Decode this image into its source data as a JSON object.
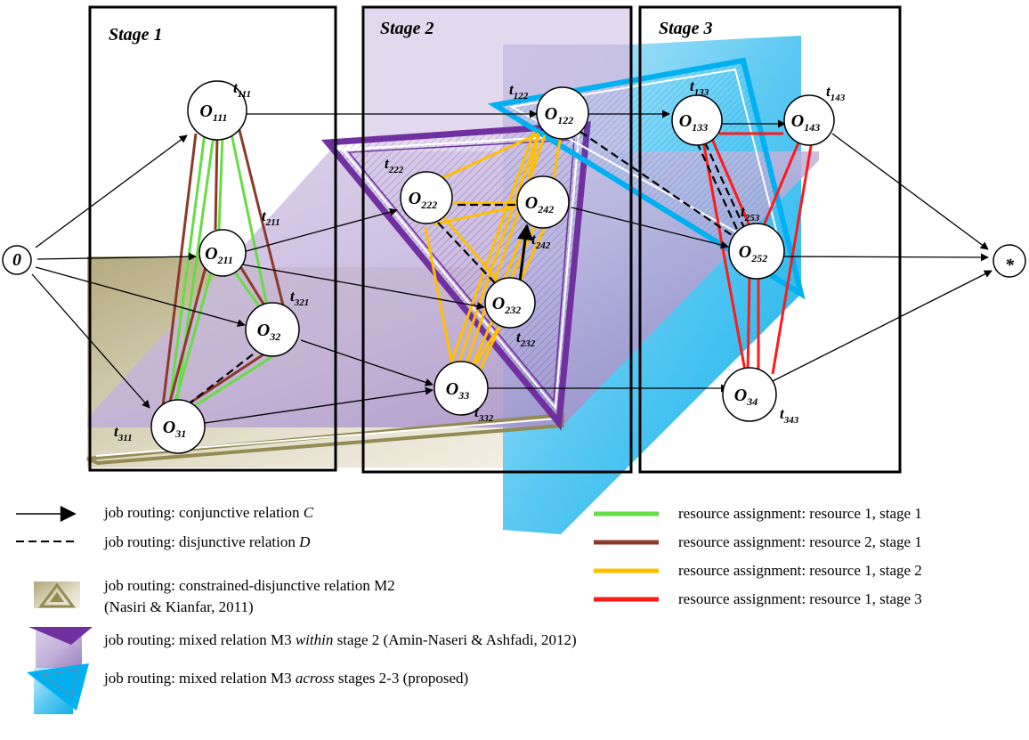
{
  "stages": [
    {
      "title": "Stage 1"
    },
    {
      "title": "Stage 2"
    },
    {
      "title": "Stage 3"
    }
  ],
  "nodes": [
    {
      "id": "src",
      "label": "0",
      "sub": ""
    },
    {
      "id": "o111",
      "label": "O",
      "sub": "111"
    },
    {
      "id": "o211",
      "label": "O",
      "sub": "211"
    },
    {
      "id": "o32",
      "label": "O",
      "sub": "32"
    },
    {
      "id": "o31",
      "label": "O",
      "sub": "31"
    },
    {
      "id": "o222",
      "label": "O",
      "sub": "222"
    },
    {
      "id": "o242",
      "label": "O",
      "sub": "242"
    },
    {
      "id": "o122",
      "label": "O",
      "sub": "122"
    },
    {
      "id": "o232",
      "label": "O",
      "sub": "232"
    },
    {
      "id": "o33",
      "label": "O",
      "sub": "33"
    },
    {
      "id": "o133",
      "label": "O",
      "sub": "133"
    },
    {
      "id": "o143",
      "label": "O",
      "sub": "143"
    },
    {
      "id": "o252",
      "label": "O",
      "sub": "252"
    },
    {
      "id": "o34",
      "label": "O",
      "sub": "34"
    },
    {
      "id": "sink",
      "label": "*",
      "sub": ""
    }
  ],
  "time_labels": [
    {
      "main": "t",
      "sub": "111"
    },
    {
      "main": "t",
      "sub": "211"
    },
    {
      "main": "t",
      "sub": "321"
    },
    {
      "main": "t",
      "sub": "311"
    },
    {
      "main": "t",
      "sub": "222"
    },
    {
      "main": "t",
      "sub": "122"
    },
    {
      "main": "t",
      "sub": "242"
    },
    {
      "main": "t",
      "sub": "232"
    },
    {
      "main": "t",
      "sub": "332"
    },
    {
      "main": "t",
      "sub": "133"
    },
    {
      "main": "t",
      "sub": "143"
    },
    {
      "main": "t",
      "sub": "253"
    },
    {
      "main": "t",
      "sub": "343"
    }
  ],
  "legend_left": [
    {
      "text": "job routing: conjunctive relation ",
      "italic": "C",
      "tail": ""
    },
    {
      "text": "job routing: disjunctive relation ",
      "italic": "D",
      "tail": ""
    },
    {
      "text": "job routing: constrained-disjunctive relation M2",
      "italic": "",
      "tail": ""
    },
    {
      "text": "(Nasiri & Kianfar, 2011)",
      "italic": "",
      "tail": ""
    },
    {
      "text": "job routing: mixed relation M3 ",
      "italic": "within",
      "tail": " stage 2 (Amin-Naseri & Ashfadi, 2012)"
    },
    {
      "text": "job routing: mixed relation M3 ",
      "italic": "across",
      "tail": " stages 2-3 (proposed)"
    }
  ],
  "legend_right": [
    {
      "text": "resource assignment: resource 1, stage 1",
      "color": "#66dd44"
    },
    {
      "text": "resource assignment: resource 2, stage 1",
      "color": "#8b3a2a"
    },
    {
      "text": "resource assignment: resource 1, stage 2",
      "color": "#ffc000"
    },
    {
      "text": "resource assignment: resource 1, stage 3",
      "color": "#ff1a1a"
    }
  ],
  "colors": {
    "green": "#66dd44",
    "brown": "#8b3a2a",
    "yellow": "#ffc000",
    "red": "#ff1a1a",
    "purple": "#7030a0",
    "cyan": "#00b0f0",
    "khaki": "#948a54"
  }
}
